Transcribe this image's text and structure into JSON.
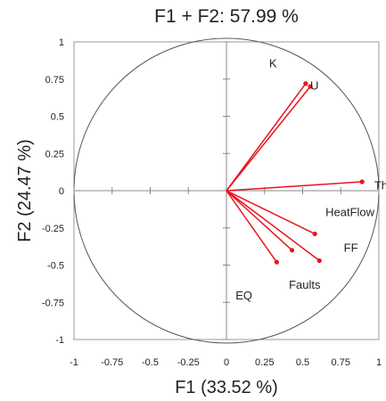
{
  "chart_data": {
    "type": "scatter",
    "title": "F1 + F2: 57.99 %",
    "xlabel": "F1 (33.52 %)",
    "ylabel": "F2 (24.47 %)",
    "xlim": [
      -1,
      1
    ],
    "ylim": [
      -1,
      1
    ],
    "x_ticks": [
      "-1",
      "-0.75",
      "-0.5",
      "-0.25",
      "0",
      "0.25",
      "0.5",
      "0.75",
      "1"
    ],
    "y_ticks": [
      "1",
      "0.75",
      "0.5",
      "0.25",
      "0",
      "-0.25",
      "-0.5",
      "-0.75",
      "-1"
    ],
    "grid": false,
    "unit_circle": true,
    "vectors": [
      {
        "x": 0.52,
        "y": 0.72
      },
      {
        "x": 0.55,
        "y": 0.7
      },
      {
        "x": 0.89,
        "y": 0.06
      },
      {
        "x": 0.58,
        "y": -0.29
      },
      {
        "x": 0.61,
        "y": -0.47
      },
      {
        "x": 0.43,
        "y": -0.4
      },
      {
        "x": 0.33,
        "y": -0.48
      }
    ],
    "labels": [
      {
        "text": "K",
        "x": 0.28,
        "y": 0.86
      },
      {
        "text": "U",
        "x": 0.55,
        "y": 0.71
      },
      {
        "text": "Th",
        "x": 0.97,
        "y": 0.04
      },
      {
        "text": "HeatFlow",
        "x": 0.65,
        "y": -0.14
      },
      {
        "text": "FF",
        "x": 0.77,
        "y": -0.38
      },
      {
        "text": "Faults",
        "x": 0.41,
        "y": -0.63
      },
      {
        "text": "EQ",
        "x": 0.06,
        "y": -0.7
      }
    ],
    "colors": {
      "vector": "#e8141b",
      "circle": "#555555",
      "axis": "#888888",
      "frame": "#9a9a9a"
    }
  }
}
